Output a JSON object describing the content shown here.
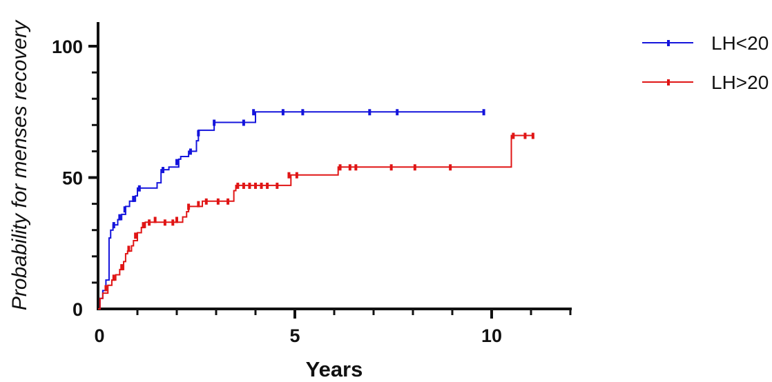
{
  "chart_data": {
    "type": "line",
    "title": "",
    "xlabel": "Years",
    "ylabel": "Probability for menses recovery",
    "xlim": [
      0,
      12
    ],
    "ylim": [
      0,
      100
    ],
    "x_ticks": [
      0,
      5,
      10
    ],
    "y_ticks": [
      0,
      50,
      100
    ],
    "grid": false,
    "legend": "top-right",
    "series": [
      {
        "name": "LH<20",
        "color": "#1414dc",
        "steps": [
          [
            0,
            0
          ],
          [
            0.05,
            4
          ],
          [
            0.12,
            7
          ],
          [
            0.2,
            11
          ],
          [
            0.28,
            27
          ],
          [
            0.32,
            30
          ],
          [
            0.38,
            32
          ],
          [
            0.5,
            34
          ],
          [
            0.6,
            36
          ],
          [
            0.7,
            39
          ],
          [
            0.8,
            41
          ],
          [
            0.95,
            43
          ],
          [
            1.0,
            46
          ],
          [
            1.5,
            48
          ],
          [
            1.6,
            53
          ],
          [
            1.8,
            54
          ],
          [
            2.05,
            57
          ],
          [
            2.1,
            58
          ],
          [
            2.3,
            60
          ],
          [
            2.5,
            64
          ],
          [
            2.55,
            68
          ],
          [
            2.95,
            71
          ],
          [
            3.75,
            71
          ],
          [
            4.0,
            75
          ],
          [
            9.8,
            75
          ]
        ],
        "censored": [
          [
            0.4,
            32
          ],
          [
            0.55,
            35
          ],
          [
            0.68,
            38
          ],
          [
            0.9,
            42
          ],
          [
            1.05,
            46
          ],
          [
            1.65,
            53
          ],
          [
            2.0,
            56
          ],
          [
            2.35,
            60
          ],
          [
            2.55,
            67
          ],
          [
            2.95,
            71
          ],
          [
            3.7,
            71
          ],
          [
            3.95,
            75
          ],
          [
            4.7,
            75
          ],
          [
            5.2,
            75
          ],
          [
            6.9,
            75
          ],
          [
            7.6,
            75
          ],
          [
            9.8,
            75
          ]
        ]
      },
      {
        "name": "LH>20",
        "color": "#e01515",
        "steps": [
          [
            0,
            0
          ],
          [
            0.05,
            4
          ],
          [
            0.12,
            6
          ],
          [
            0.25,
            9
          ],
          [
            0.35,
            11
          ],
          [
            0.45,
            13
          ],
          [
            0.55,
            15
          ],
          [
            0.65,
            18
          ],
          [
            0.7,
            21
          ],
          [
            0.75,
            22
          ],
          [
            0.85,
            24
          ],
          [
            0.9,
            26
          ],
          [
            1.0,
            29
          ],
          [
            1.1,
            31
          ],
          [
            1.2,
            33
          ],
          [
            1.5,
            33
          ],
          [
            2.05,
            33
          ],
          [
            2.15,
            35
          ],
          [
            2.25,
            37
          ],
          [
            2.3,
            39
          ],
          [
            2.6,
            39
          ],
          [
            2.65,
            41
          ],
          [
            2.9,
            41
          ],
          [
            3.3,
            41
          ],
          [
            3.45,
            45
          ],
          [
            3.5,
            47
          ],
          [
            4.85,
            47
          ],
          [
            4.9,
            51
          ],
          [
            5.1,
            51
          ],
          [
            6.1,
            54
          ],
          [
            9.8,
            54
          ],
          [
            10.5,
            66
          ],
          [
            11.05,
            66
          ]
        ],
        "censored": [
          [
            0.2,
            8
          ],
          [
            0.4,
            12
          ],
          [
            0.6,
            16
          ],
          [
            0.78,
            23
          ],
          [
            0.95,
            28
          ],
          [
            1.15,
            32
          ],
          [
            1.3,
            33
          ],
          [
            1.45,
            34
          ],
          [
            1.7,
            33
          ],
          [
            1.9,
            33
          ],
          [
            2.0,
            34
          ],
          [
            2.3,
            39
          ],
          [
            2.55,
            40
          ],
          [
            2.75,
            41
          ],
          [
            3.05,
            41
          ],
          [
            3.3,
            41
          ],
          [
            3.55,
            47
          ],
          [
            3.7,
            47
          ],
          [
            3.85,
            47
          ],
          [
            4.0,
            47
          ],
          [
            4.15,
            47
          ],
          [
            4.3,
            47
          ],
          [
            4.55,
            47
          ],
          [
            4.85,
            51
          ],
          [
            5.05,
            51
          ],
          [
            6.15,
            54
          ],
          [
            6.4,
            54
          ],
          [
            6.55,
            54
          ],
          [
            7.45,
            54
          ],
          [
            8.05,
            54
          ],
          [
            8.95,
            54
          ],
          [
            10.55,
            66
          ],
          [
            10.85,
            66
          ],
          [
            11.05,
            66
          ]
        ]
      }
    ]
  }
}
